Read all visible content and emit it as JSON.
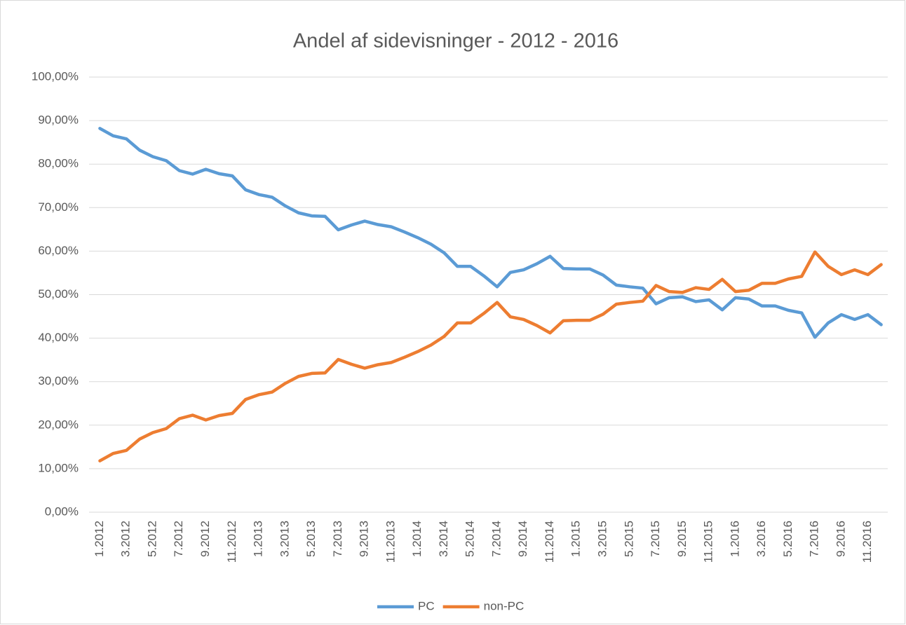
{
  "chart_data": {
    "type": "line",
    "title": "Andel af sidevisninger - 2012 - 2016",
    "categories": [
      "1.2012",
      null,
      "3.2012",
      null,
      "5.2012",
      null,
      "7.2012",
      null,
      "9.2012",
      null,
      "11.2012",
      null,
      "1.2013",
      null,
      "3.2013",
      null,
      "5.2013",
      null,
      "7.2013",
      null,
      "9.2013",
      null,
      "11.2013",
      null,
      "1.2014",
      null,
      "3.2014",
      null,
      "5.2014",
      null,
      "7.2014",
      null,
      "9.2014",
      null,
      "11.2014",
      null,
      "1.2015",
      null,
      "3.2015",
      null,
      "5.2015",
      null,
      "7.2015",
      null,
      "9.2015",
      null,
      "11.2015",
      null,
      "1.2016",
      null,
      "3.2016",
      null,
      "5.2016",
      null,
      "7.2016",
      null,
      "9.2016",
      null,
      "11.2016",
      null
    ],
    "series": [
      {
        "name": "PC",
        "color": "#5b9bd5",
        "values": [
          88.2,
          86.5,
          85.8,
          83.2,
          81.7,
          80.8,
          78.5,
          77.7,
          78.8,
          77.8,
          77.3,
          74.1,
          73.0,
          72.4,
          70.4,
          68.8,
          68.1,
          68.0,
          64.9,
          66.0,
          66.9,
          66.1,
          65.6,
          64.4,
          63.1,
          61.6,
          59.6,
          56.5,
          56.5,
          54.3,
          51.8,
          55.1,
          55.7,
          57.1,
          58.8,
          56.0,
          55.9,
          55.9,
          54.5,
          52.2,
          51.8,
          51.5,
          47.9,
          49.3,
          49.5,
          48.4,
          48.8,
          46.5,
          49.3,
          49.0,
          47.4,
          47.4,
          46.4,
          45.8,
          40.2,
          43.5,
          45.4,
          44.3,
          45.4,
          43.1
        ]
      },
      {
        "name": "non-PC",
        "color": "#ed7d31",
        "values": [
          11.8,
          13.5,
          14.2,
          16.8,
          18.3,
          19.2,
          21.5,
          22.3,
          21.2,
          22.2,
          22.7,
          25.9,
          27.0,
          27.6,
          29.6,
          31.2,
          31.9,
          32.0,
          35.1,
          34.0,
          33.1,
          33.9,
          34.4,
          35.6,
          36.9,
          38.4,
          40.4,
          43.5,
          43.5,
          45.7,
          48.2,
          44.9,
          44.3,
          42.9,
          41.2,
          44.0,
          44.1,
          44.1,
          45.5,
          47.8,
          48.2,
          48.5,
          52.1,
          50.7,
          50.5,
          51.6,
          51.2,
          53.5,
          50.7,
          51.0,
          52.6,
          52.6,
          53.6,
          54.2,
          59.8,
          56.5,
          54.6,
          55.7,
          54.6,
          56.9
        ]
      }
    ],
    "ylim": [
      0,
      100
    ],
    "yticks": [
      {
        "value": 0,
        "label": "0,00%"
      },
      {
        "value": 10,
        "label": "10,00%"
      },
      {
        "value": 20,
        "label": "20,00%"
      },
      {
        "value": 30,
        "label": "30,00%"
      },
      {
        "value": 40,
        "label": "40,00%"
      },
      {
        "value": 50,
        "label": "50,00%"
      },
      {
        "value": 60,
        "label": "60,00%"
      },
      {
        "value": 70,
        "label": "70,00%"
      },
      {
        "value": 80,
        "label": "80,00%"
      },
      {
        "value": 90,
        "label": "90,00%"
      },
      {
        "value": 100,
        "label": "100,00%"
      }
    ],
    "grid": true,
    "legend": "bottom"
  }
}
